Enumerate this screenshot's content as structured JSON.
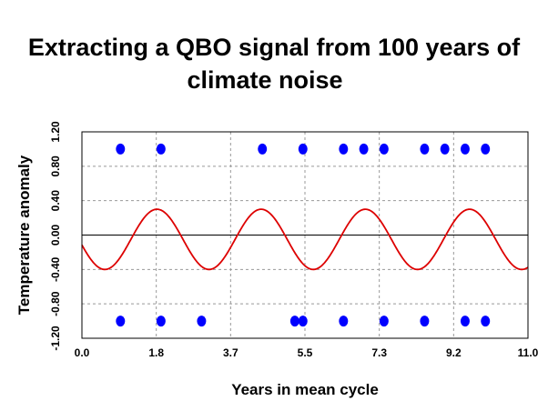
{
  "chart_data": {
    "type": "scatter",
    "title_lines": [
      "Extracting a QBO signal from 100 years  of",
      "climate noise"
    ],
    "xlabel": "Years in mean cycle",
    "ylabel": "Temperature anomaly",
    "xlim": [
      0.0,
      11.0
    ],
    "ylim": [
      -1.2,
      1.2
    ],
    "x_ticks": [
      "0.0",
      "1.8",
      "3.7",
      "5.5",
      "7.3",
      "9.2",
      "11.0"
    ],
    "y_ticks": [
      "1.20",
      "0.80",
      "0.40",
      "0.00",
      "-0.40",
      "-0.80",
      "-1.20"
    ],
    "grid": true,
    "grid_style": "dashed",
    "series": [
      {
        "kind": "points",
        "color": "#0000ff",
        "points": [
          {
            "x": 0.95,
            "y": 1.0
          },
          {
            "x": 1.95,
            "y": 1.0
          },
          {
            "x": 4.45,
            "y": 1.0
          },
          {
            "x": 5.45,
            "y": 1.0
          },
          {
            "x": 6.45,
            "y": 1.0
          },
          {
            "x": 6.95,
            "y": 1.0
          },
          {
            "x": 7.45,
            "y": 1.0
          },
          {
            "x": 8.45,
            "y": 1.0
          },
          {
            "x": 8.95,
            "y": 1.0
          },
          {
            "x": 9.45,
            "y": 1.0
          },
          {
            "x": 9.95,
            "y": 1.0
          },
          {
            "x": 0.95,
            "y": -1.0
          },
          {
            "x": 1.95,
            "y": -1.0
          },
          {
            "x": 2.95,
            "y": -1.0
          },
          {
            "x": 5.25,
            "y": -1.0
          },
          {
            "x": 5.45,
            "y": -1.0
          },
          {
            "x": 6.45,
            "y": -1.0
          },
          {
            "x": 7.45,
            "y": -1.0
          },
          {
            "x": 8.45,
            "y": -1.0
          },
          {
            "x": 9.45,
            "y": -1.0
          },
          {
            "x": 9.95,
            "y": -1.0
          }
        ]
      },
      {
        "kind": "sinusoid",
        "color": "#dd0000",
        "amplitude": 0.35,
        "offset": -0.05,
        "period_years": 2.57,
        "first_peak_year": 1.85
      }
    ],
    "zero_line": true
  }
}
